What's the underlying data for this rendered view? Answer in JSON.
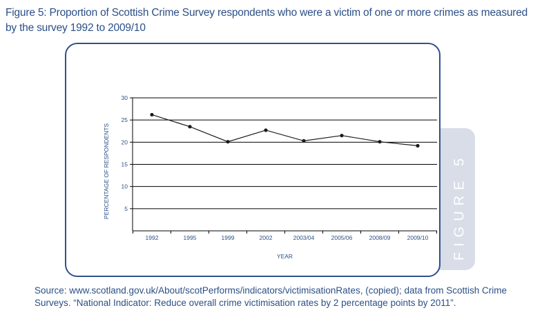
{
  "title": "Figure 5: Proportion of Scottish Crime Survey respondents who were a victim of one or more crimes as measured by the survey 1992 to 2009/10",
  "side_tab": "FIGURE 5",
  "source": "Source: www.scotland.gov.uk/About/scotPerforms/indicators/victimisationRates,   (copied); data from Scottish Crime Surveys.  “National Indicator: Reduce overall crime victimisation rates by 2 percentage points by 2011”.",
  "chart_data": {
    "type": "line",
    "categories": [
      "1992",
      "1995",
      "1999",
      "2002",
      "2003/04",
      "2005/06",
      "2008/09",
      "2009/10"
    ],
    "series": [
      {
        "values": [
          26.2,
          23.5,
          20.1,
          22.7,
          20.3,
          21.5,
          20.1,
          19.2
        ]
      }
    ],
    "xlabel": "YEAR",
    "ylabel": "PERCENTAGE OF RESPONDENTS",
    "ylim": [
      0,
      30
    ],
    "yticks": [
      5,
      10,
      15,
      20,
      25,
      30
    ],
    "grid": true,
    "colors": {
      "line": "#1a1a1a",
      "grid": "#000000",
      "text": "#2b4f86",
      "frame": "#2f5088"
    }
  }
}
